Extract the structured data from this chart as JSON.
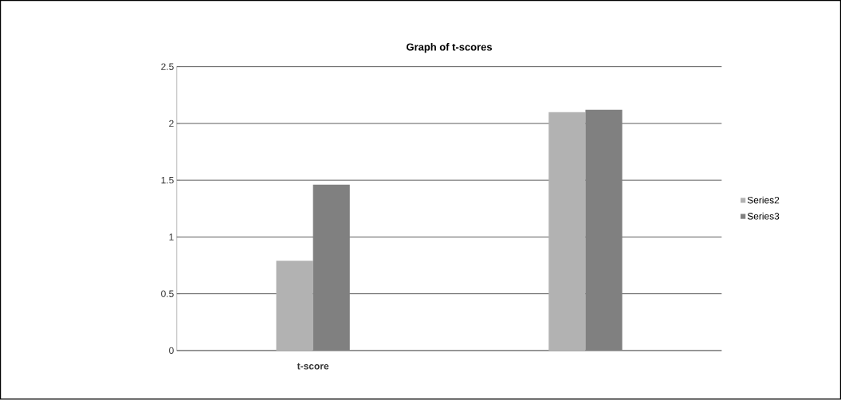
{
  "chart_data": {
    "type": "bar",
    "title": "Graph of t-scores",
    "categories": [
      "t-score",
      null
    ],
    "series": [
      {
        "name": "Series2",
        "color": "#b2b2b2",
        "values": [
          0.79,
          2.1
        ]
      },
      {
        "name": "Series3",
        "color": "#808080",
        "values": [
          1.46,
          2.12
        ]
      }
    ],
    "ylim": [
      0,
      2.5
    ],
    "yticks": [
      0,
      0.5,
      1,
      1.5,
      2,
      2.5
    ],
    "grid": "y",
    "legend": "right"
  }
}
